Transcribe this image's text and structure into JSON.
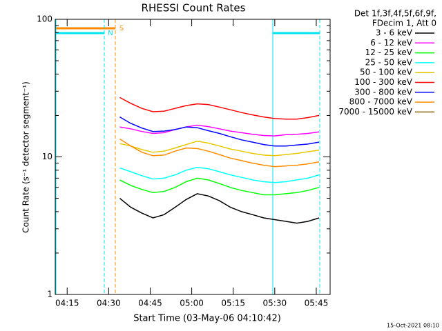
{
  "chart_data": {
    "type": "line",
    "title": "RHESSI Count Rates",
    "x_label": "Start Time (03-May-06 04:10:42)",
    "y_label": "Count Rate (s⁻¹ detector segment⁻¹)",
    "legend_header": [
      "Det 1f,3f,4f,5f,6f,9f,",
      "FDecim 1, Att 0"
    ],
    "flags": [
      {
        "label": "S",
        "color": "#ff8c00"
      },
      {
        "label": "N",
        "color": "#00e5ee"
      }
    ],
    "footer": "15-Oct-2021 08:10",
    "log_y": true,
    "xlim": [
      250.7,
      350
    ],
    "xticks": [
      {
        "value": 255,
        "label": "04:15"
      },
      {
        "value": 270,
        "label": "04:30"
      },
      {
        "value": 285,
        "label": "04:45"
      },
      {
        "value": 300,
        "label": "05:00"
      },
      {
        "value": 315,
        "label": "05:15"
      },
      {
        "value": 330,
        "label": "05:30"
      },
      {
        "value": 345,
        "label": "05:45"
      }
    ],
    "ylim": [
      1,
      100
    ],
    "yticks": [
      1,
      10,
      100
    ],
    "yminorticks": [
      2,
      3,
      4,
      5,
      6,
      7,
      8,
      9,
      20,
      30,
      40,
      50,
      60,
      70,
      80,
      90
    ],
    "x": [
      274,
      278,
      282,
      286,
      290,
      294,
      298,
      302,
      306,
      310,
      314,
      318,
      322,
      326,
      330,
      334,
      338,
      342,
      346
    ],
    "series": [
      {
        "name": "3 - 6 keV",
        "color": "#000000",
        "values": [
          5.0,
          4.3,
          3.9,
          3.6,
          3.8,
          4.3,
          4.9,
          5.4,
          5.2,
          4.8,
          4.3,
          4.0,
          3.8,
          3.6,
          3.5,
          3.4,
          3.3,
          3.4,
          3.6
        ]
      },
      {
        "name": "6 - 12 keV",
        "color": "#ff00ff",
        "values": [
          16.5,
          16,
          15.3,
          14.8,
          15,
          15.8,
          16.5,
          17,
          16.6,
          16,
          15.4,
          15,
          14.6,
          14.3,
          14.2,
          14.5,
          14.6,
          14.8,
          15.2
        ]
      },
      {
        "name": "12 - 25 keV",
        "color": "#00ff00",
        "values": [
          6.8,
          6.2,
          5.8,
          5.5,
          5.6,
          6,
          6.6,
          7,
          6.8,
          6.4,
          6,
          5.7,
          5.5,
          5.3,
          5.3,
          5.4,
          5.5,
          5.7,
          6
        ]
      },
      {
        "name": "25 - 50 keV",
        "color": "#00ffff",
        "values": [
          8.3,
          7.8,
          7.3,
          6.9,
          7,
          7.4,
          8,
          8.4,
          8.2,
          7.8,
          7.4,
          7.1,
          6.8,
          6.6,
          6.5,
          6.6,
          6.8,
          7,
          7.4
        ]
      },
      {
        "name": "50 - 100 keV",
        "color": "#e6c800",
        "values": [
          12.5,
          12,
          11.3,
          10.8,
          11,
          11.6,
          12.3,
          13,
          12.6,
          12,
          11.4,
          11,
          10.6,
          10.3,
          10.2,
          10.4,
          10.6,
          10.9,
          11.2
        ]
      },
      {
        "name": "100 - 300 keV",
        "color": "#ff0000",
        "values": [
          27,
          24.5,
          22.5,
          21.3,
          21.5,
          22.5,
          23.6,
          24.3,
          24,
          23,
          22,
          21,
          20.2,
          19.5,
          19,
          18.8,
          18.8,
          19.3,
          20
        ]
      },
      {
        "name": "300 - 800 keV",
        "color": "#0000ff",
        "values": [
          19.5,
          17.5,
          16.2,
          15.3,
          15.4,
          15.8,
          16.5,
          16.3,
          15.5,
          14.8,
          14,
          13.3,
          12.8,
          12.3,
          12,
          12,
          12.2,
          12.4,
          12.8
        ]
      },
      {
        "name": "800 - 7000 keV",
        "color": "#ff8c00",
        "values": [
          13.5,
          12,
          10.8,
          10.2,
          10.3,
          11,
          11.6,
          11.5,
          11,
          10.4,
          9.8,
          9.4,
          9,
          8.7,
          8.5,
          8.6,
          8.7,
          8.9,
          9.2
        ]
      },
      {
        "name": "7000 - 15000 keV",
        "color": "#8b6508",
        "values": [
          null,
          null,
          null,
          null,
          null,
          null,
          null,
          null,
          null,
          null,
          null,
          null,
          null,
          null,
          null,
          null,
          null,
          null,
          null
        ]
      }
    ]
  }
}
